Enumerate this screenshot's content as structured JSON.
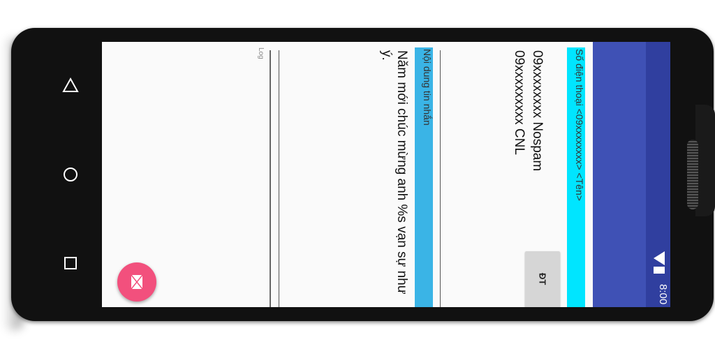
{
  "status_bar": {
    "time": "8:00"
  },
  "form": {
    "phone_section_label": "Số điện thoại <09xxxxxxxx> <Tên>",
    "phone_list": "09xxxxxxxx Nospam\n09xxxxxxxxx CNL",
    "contacts_button_label": "ĐT",
    "message_section_label": "Nội dung tin nhắn",
    "message_text": "Năm mới chúc mừng anh %s vạn sự như ý.",
    "log_label": "Log"
  },
  "fab": {
    "icon": "envelope-icon"
  },
  "nav": {
    "icons": [
      "back-icon",
      "home-icon",
      "recents-icon"
    ]
  },
  "colors": {
    "status_bar": "#303f9f",
    "app_bar": "#3f51b5",
    "phone_section": "#00e5ff",
    "message_section": "#3ab4e6",
    "fab": "#f2507d"
  }
}
